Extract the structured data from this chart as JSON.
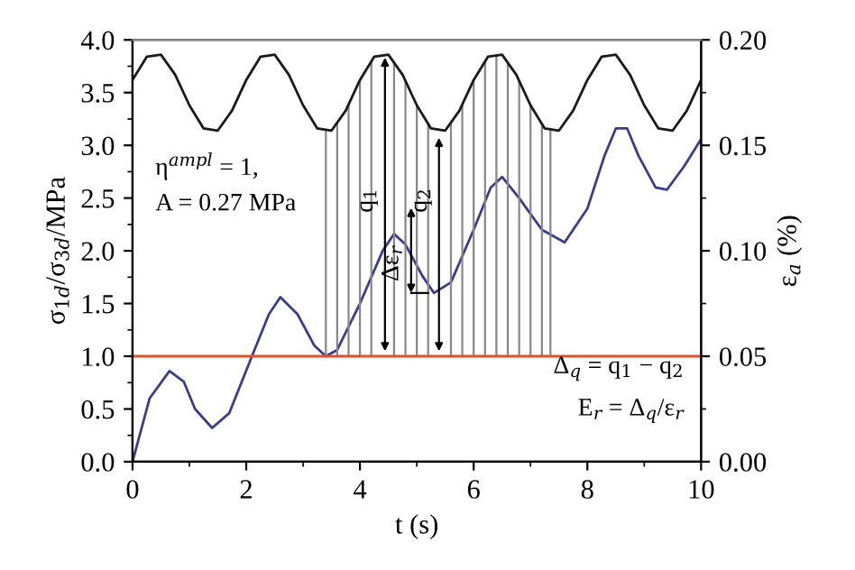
{
  "chart_data": {
    "type": "line",
    "xlabel": "t (s)",
    "ylabel": "σ$_{1d}$/σ$_{3d}$/MPa",
    "y2label": "ε$_{a}$ (%)",
    "xlim": [
      0,
      10
    ],
    "xticks": [
      0,
      2,
      4,
      6,
      8,
      10
    ],
    "ylim": [
      0,
      4.0
    ],
    "yticks": [
      {
        "value": 0,
        "label": "0.0"
      },
      0.5,
      {
        "value": 1,
        "label": "1.0"
      },
      1.5,
      {
        "value": 2,
        "label": "2.0"
      },
      2.5,
      {
        "value": 3,
        "label": "3.0"
      },
      3.5,
      {
        "value": 4,
        "label": "4.0"
      }
    ],
    "y2lim": [
      0,
      0.2
    ],
    "y2ticks": [
      {
        "value": 0,
        "label": "0.00"
      },
      0.05,
      {
        "value": 0.1,
        "label": "0.10"
      },
      0.15,
      {
        "value": 0.2,
        "label": "0.20"
      }
    ],
    "grid": false,
    "legend": false,
    "series": [
      {
        "color": "#1a1a1a",
        "x": [
          0,
          0.25,
          0.5,
          0.75,
          1,
          1.25,
          1.5,
          1.75,
          2,
          2.25,
          2.5,
          2.75,
          3,
          3.25,
          3.5,
          3.75,
          4,
          4.25,
          4.5,
          4.75,
          5,
          5.25,
          5.5,
          5.75,
          6,
          6.25,
          6.5,
          6.75,
          7,
          7.25,
          7.5,
          7.75,
          8,
          8.25,
          8.5,
          8.75,
          9,
          9.25,
          9.5,
          9.75,
          10
        ],
        "values": [
          3.62,
          3.84,
          3.86,
          3.67,
          3.38,
          3.16,
          3.14,
          3.33,
          3.62,
          3.84,
          3.86,
          3.67,
          3.38,
          3.16,
          3.14,
          3.33,
          3.62,
          3.84,
          3.86,
          3.67,
          3.38,
          3.16,
          3.14,
          3.33,
          3.62,
          3.84,
          3.86,
          3.67,
          3.38,
          3.16,
          3.14,
          3.33,
          3.62,
          3.84,
          3.86,
          3.67,
          3.38,
          3.16,
          3.14,
          3.33,
          3.62
        ]
      },
      {
        "color": "#e0502c",
        "x": [
          0,
          2.5,
          5,
          7.5,
          10
        ],
        "values": [
          1.0,
          1.0,
          1.0,
          1.0,
          1.0
        ]
      },
      {
        "color": "#3c3c8c",
        "axis": "y2",
        "x": [
          0,
          0.3,
          0.65,
          0.9,
          1.1,
          1.4,
          1.7,
          2.1,
          2.4,
          2.6,
          2.9,
          3.2,
          3.4,
          3.6,
          4.0,
          4.4,
          4.6,
          4.8,
          5.1,
          5.3,
          5.6,
          6.0,
          6.3,
          6.5,
          6.8,
          7.2,
          7.6,
          8.0,
          8.3,
          8.5,
          8.7,
          8.9,
          9.2,
          9.4,
          9.7,
          10
        ],
        "values": [
          0,
          0.03,
          0.043,
          0.038,
          0.025,
          0.016,
          0.023,
          0.05,
          0.07,
          0.078,
          0.07,
          0.055,
          0.05,
          0.053,
          0.075,
          0.1,
          0.108,
          0.103,
          0.088,
          0.08,
          0.085,
          0.11,
          0.13,
          0.135,
          0.125,
          0.11,
          0.104,
          0.12,
          0.145,
          0.158,
          0.158,
          0.145,
          0.13,
          0.129,
          0.14,
          0.153
        ]
      }
    ],
    "ref_lines": [
      {
        "axis": "x",
        "value": 3.4,
        "color": "#888888"
      },
      {
        "axis": "x",
        "value": 3.6,
        "color": "#888888"
      },
      {
        "axis": "x",
        "value": 3.8,
        "color": "#888888"
      },
      {
        "axis": "x",
        "value": 4.0,
        "color": "#888888"
      },
      {
        "axis": "x",
        "value": 4.2,
        "color": "#888888"
      },
      {
        "axis": "x",
        "value": 4.6,
        "color": "#888888"
      },
      {
        "axis": "x",
        "value": 4.8,
        "color": "#888888"
      },
      {
        "axis": "x",
        "value": 5.0,
        "color": "#888888"
      },
      {
        "axis": "x",
        "value": 5.2,
        "color": "#888888"
      },
      {
        "axis": "x",
        "value": 5.6,
        "color": "#888888"
      },
      {
        "axis": "x",
        "value": 5.8,
        "color": "#888888"
      },
      {
        "axis": "x",
        "value": 6.0,
        "color": "#888888"
      },
      {
        "axis": "x",
        "value": 6.2,
        "color": "#888888"
      },
      {
        "axis": "x",
        "value": 6.4,
        "color": "#888888"
      },
      {
        "axis": "x",
        "value": 6.6,
        "color": "#888888"
      },
      {
        "axis": "x",
        "value": 6.8,
        "color": "#888888"
      },
      {
        "axis": "x",
        "value": 7.0,
        "color": "#888888"
      },
      {
        "axis": "x",
        "value": 7.2,
        "color": "#888888"
      },
      {
        "axis": "x",
        "value": 7.35,
        "color": "#888888"
      }
    ],
    "annotations": [
      "q$_{1}$",
      "q$_{2}$",
      {
        "text": "Δε$_{r}$",
        "x": 4.9,
        "y": 1.6
      },
      "η$^{ampl}$ = 1,",
      "A = 0.27 MPa",
      "Δ$_{q}$ = q$_{1}$ − q$_{2}$",
      "E$_{r}$ = Δ$_{q}$/ε$_{r}$"
    ]
  }
}
